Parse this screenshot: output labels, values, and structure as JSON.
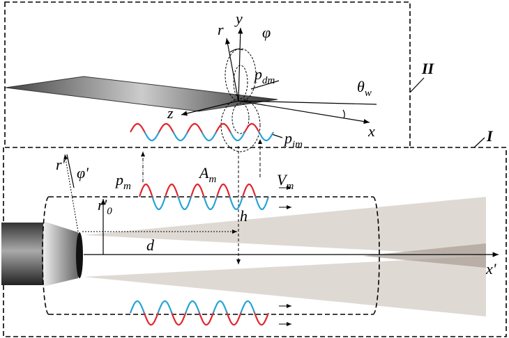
{
  "labels": {
    "box_II": "II",
    "box_I": "I",
    "r": "r",
    "y": "y",
    "phi": "φ",
    "p_dm": {
      "base": "p",
      "sub": "dm"
    },
    "theta_w": {
      "base": "θ",
      "sub": "w"
    },
    "z": "z",
    "x": "x",
    "p_im": {
      "base": "p",
      "sub": "im"
    },
    "r_prime": "r'",
    "phi_prime": "φ'",
    "p_m": {
      "base": "p",
      "sub": "m"
    },
    "A_m": {
      "base": "A",
      "sub": "m"
    },
    "V_m": {
      "base": "V",
      "sub": "m"
    },
    "r0_prime": {
      "base": "r'",
      "sub": "0"
    },
    "h": "h",
    "d": "d",
    "x_prime": "x'"
  }
}
